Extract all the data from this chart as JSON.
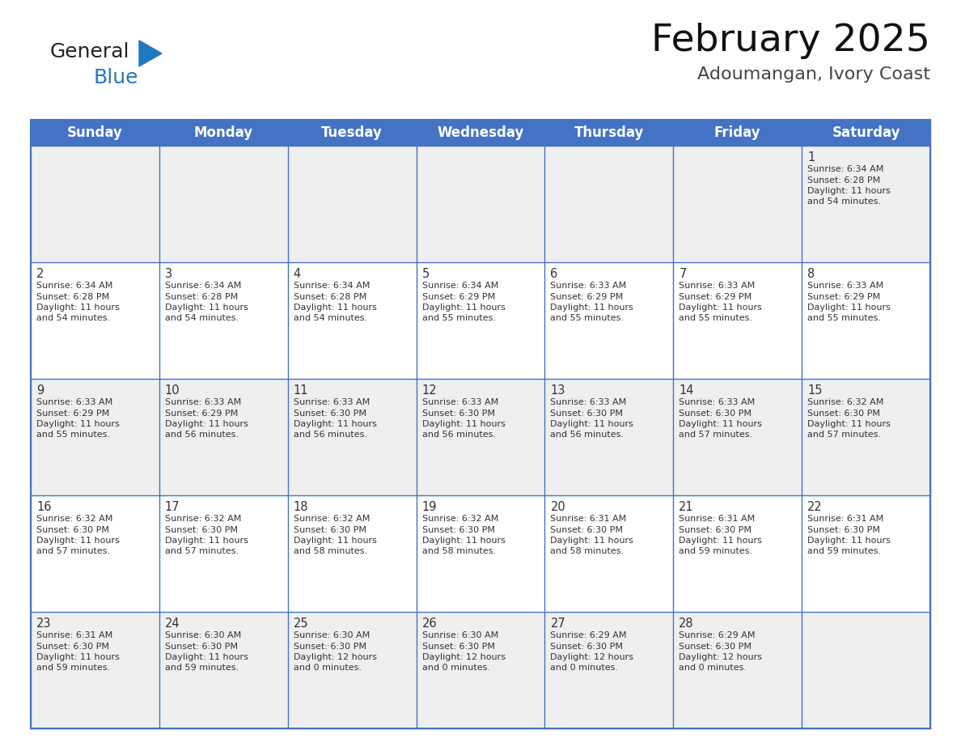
{
  "title": "February 2025",
  "subtitle": "Adoumangan, Ivory Coast",
  "header_bg": "#4472C4",
  "header_text_color": "#FFFFFF",
  "days_of_week": [
    "Sunday",
    "Monday",
    "Tuesday",
    "Wednesday",
    "Thursday",
    "Friday",
    "Saturday"
  ],
  "title_font_size": 34,
  "subtitle_font_size": 16,
  "header_font_size": 12,
  "cell_text_color": "#333333",
  "day_num_font_size": 10.5,
  "info_font_size": 8.0,
  "grid_color": "#4472C4",
  "row_bg_colors": [
    "#EFEFEF",
    "#FFFFFF",
    "#EFEFEF",
    "#FFFFFF",
    "#EFEFEF"
  ],
  "logo_general_color": "#222222",
  "logo_blue_color": "#2278BD",
  "weeks": [
    [
      {
        "day": null,
        "info": ""
      },
      {
        "day": null,
        "info": ""
      },
      {
        "day": null,
        "info": ""
      },
      {
        "day": null,
        "info": ""
      },
      {
        "day": null,
        "info": ""
      },
      {
        "day": null,
        "info": ""
      },
      {
        "day": 1,
        "info": "Sunrise: 6:34 AM\nSunset: 6:28 PM\nDaylight: 11 hours\nand 54 minutes."
      }
    ],
    [
      {
        "day": 2,
        "info": "Sunrise: 6:34 AM\nSunset: 6:28 PM\nDaylight: 11 hours\nand 54 minutes."
      },
      {
        "day": 3,
        "info": "Sunrise: 6:34 AM\nSunset: 6:28 PM\nDaylight: 11 hours\nand 54 minutes."
      },
      {
        "day": 4,
        "info": "Sunrise: 6:34 AM\nSunset: 6:28 PM\nDaylight: 11 hours\nand 54 minutes."
      },
      {
        "day": 5,
        "info": "Sunrise: 6:34 AM\nSunset: 6:29 PM\nDaylight: 11 hours\nand 55 minutes."
      },
      {
        "day": 6,
        "info": "Sunrise: 6:33 AM\nSunset: 6:29 PM\nDaylight: 11 hours\nand 55 minutes."
      },
      {
        "day": 7,
        "info": "Sunrise: 6:33 AM\nSunset: 6:29 PM\nDaylight: 11 hours\nand 55 minutes."
      },
      {
        "day": 8,
        "info": "Sunrise: 6:33 AM\nSunset: 6:29 PM\nDaylight: 11 hours\nand 55 minutes."
      }
    ],
    [
      {
        "day": 9,
        "info": "Sunrise: 6:33 AM\nSunset: 6:29 PM\nDaylight: 11 hours\nand 55 minutes."
      },
      {
        "day": 10,
        "info": "Sunrise: 6:33 AM\nSunset: 6:29 PM\nDaylight: 11 hours\nand 56 minutes."
      },
      {
        "day": 11,
        "info": "Sunrise: 6:33 AM\nSunset: 6:30 PM\nDaylight: 11 hours\nand 56 minutes."
      },
      {
        "day": 12,
        "info": "Sunrise: 6:33 AM\nSunset: 6:30 PM\nDaylight: 11 hours\nand 56 minutes."
      },
      {
        "day": 13,
        "info": "Sunrise: 6:33 AM\nSunset: 6:30 PM\nDaylight: 11 hours\nand 56 minutes."
      },
      {
        "day": 14,
        "info": "Sunrise: 6:33 AM\nSunset: 6:30 PM\nDaylight: 11 hours\nand 57 minutes."
      },
      {
        "day": 15,
        "info": "Sunrise: 6:32 AM\nSunset: 6:30 PM\nDaylight: 11 hours\nand 57 minutes."
      }
    ],
    [
      {
        "day": 16,
        "info": "Sunrise: 6:32 AM\nSunset: 6:30 PM\nDaylight: 11 hours\nand 57 minutes."
      },
      {
        "day": 17,
        "info": "Sunrise: 6:32 AM\nSunset: 6:30 PM\nDaylight: 11 hours\nand 57 minutes."
      },
      {
        "day": 18,
        "info": "Sunrise: 6:32 AM\nSunset: 6:30 PM\nDaylight: 11 hours\nand 58 minutes."
      },
      {
        "day": 19,
        "info": "Sunrise: 6:32 AM\nSunset: 6:30 PM\nDaylight: 11 hours\nand 58 minutes."
      },
      {
        "day": 20,
        "info": "Sunrise: 6:31 AM\nSunset: 6:30 PM\nDaylight: 11 hours\nand 58 minutes."
      },
      {
        "day": 21,
        "info": "Sunrise: 6:31 AM\nSunset: 6:30 PM\nDaylight: 11 hours\nand 59 minutes."
      },
      {
        "day": 22,
        "info": "Sunrise: 6:31 AM\nSunset: 6:30 PM\nDaylight: 11 hours\nand 59 minutes."
      }
    ],
    [
      {
        "day": 23,
        "info": "Sunrise: 6:31 AM\nSunset: 6:30 PM\nDaylight: 11 hours\nand 59 minutes."
      },
      {
        "day": 24,
        "info": "Sunrise: 6:30 AM\nSunset: 6:30 PM\nDaylight: 11 hours\nand 59 minutes."
      },
      {
        "day": 25,
        "info": "Sunrise: 6:30 AM\nSunset: 6:30 PM\nDaylight: 12 hours\nand 0 minutes."
      },
      {
        "day": 26,
        "info": "Sunrise: 6:30 AM\nSunset: 6:30 PM\nDaylight: 12 hours\nand 0 minutes."
      },
      {
        "day": 27,
        "info": "Sunrise: 6:29 AM\nSunset: 6:30 PM\nDaylight: 12 hours\nand 0 minutes."
      },
      {
        "day": 28,
        "info": "Sunrise: 6:29 AM\nSunset: 6:30 PM\nDaylight: 12 hours\nand 0 minutes."
      },
      {
        "day": null,
        "info": ""
      }
    ]
  ]
}
